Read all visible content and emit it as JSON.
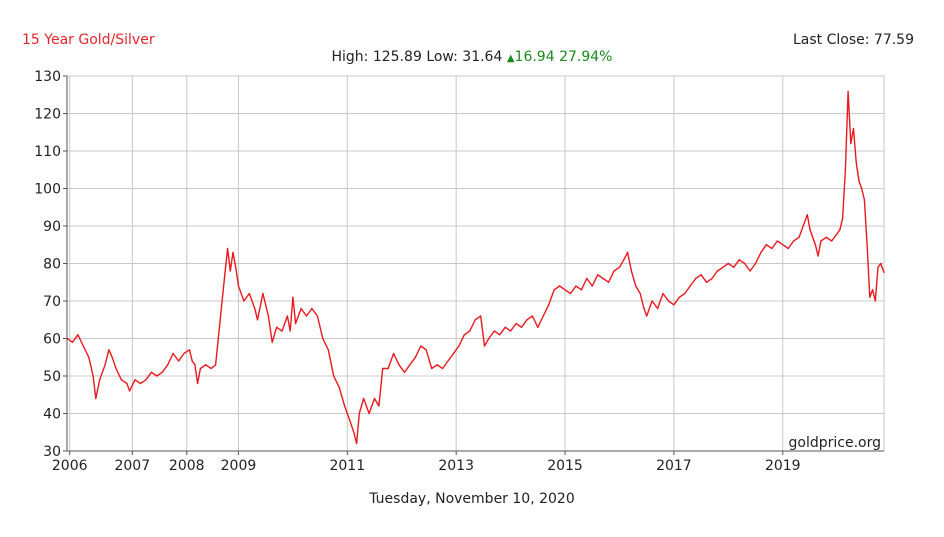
{
  "header": {
    "title": "15 Year Gold/Silver",
    "last_close_label": "Last Close:",
    "last_close_value": "77.59",
    "high_label": "High:",
    "high_value": "125.89",
    "low_label": "Low:",
    "low_value": "31.64",
    "change_arrow": "▲",
    "change_value": "16.94",
    "change_pct": "27.94%"
  },
  "footer": {
    "date": "Tuesday, November 10, 2020"
  },
  "watermark": "goldprice.org",
  "colors": {
    "line": "#e8191f",
    "title": "#e3262b",
    "change": "#1a8a1a",
    "grid": "#c8c8c8"
  },
  "chart_data": {
    "type": "line",
    "title": "15 Year Gold/Silver",
    "xlabel": "",
    "ylabel": "",
    "ylim": [
      30,
      130
    ],
    "xlim": [
      2005.85,
      2020.86
    ],
    "yticks": [
      30,
      40,
      50,
      60,
      70,
      80,
      90,
      100,
      110,
      120,
      130
    ],
    "xticks": [
      {
        "label": "2006",
        "x": 2005.9
      },
      {
        "label": "2007",
        "x": 2007.05
      },
      {
        "label": "2008",
        "x": 2008.05
      },
      {
        "label": "2009",
        "x": 2009.0
      },
      {
        "label": "2011",
        "x": 2011.0
      },
      {
        "label": "2013",
        "x": 2013.0
      },
      {
        "label": "2015",
        "x": 2015.0
      },
      {
        "label": "2017",
        "x": 2017.0
      },
      {
        "label": "2019",
        "x": 2019.0
      }
    ],
    "grid": true,
    "series": [
      {
        "points": [
          [
            2005.86,
            60
          ],
          [
            2005.95,
            59
          ],
          [
            2006.05,
            61
          ],
          [
            2006.15,
            58
          ],
          [
            2006.25,
            55
          ],
          [
            2006.33,
            50
          ],
          [
            2006.38,
            44
          ],
          [
            2006.45,
            49
          ],
          [
            2006.55,
            53
          ],
          [
            2006.62,
            57
          ],
          [
            2006.68,
            55
          ],
          [
            2006.75,
            52
          ],
          [
            2006.85,
            49
          ],
          [
            2006.95,
            48
          ],
          [
            2007.0,
            46
          ],
          [
            2007.1,
            49
          ],
          [
            2007.2,
            48
          ],
          [
            2007.3,
            49
          ],
          [
            2007.4,
            51
          ],
          [
            2007.5,
            50
          ],
          [
            2007.6,
            51
          ],
          [
            2007.7,
            53
          ],
          [
            2007.8,
            56
          ],
          [
            2007.9,
            54
          ],
          [
            2008.0,
            56
          ],
          [
            2008.1,
            57
          ],
          [
            2008.15,
            54
          ],
          [
            2008.2,
            53
          ],
          [
            2008.25,
            48
          ],
          [
            2008.3,
            52
          ],
          [
            2008.4,
            53
          ],
          [
            2008.5,
            52
          ],
          [
            2008.58,
            53
          ],
          [
            2008.63,
            60
          ],
          [
            2008.7,
            70
          ],
          [
            2008.75,
            77
          ],
          [
            2008.8,
            84
          ],
          [
            2008.85,
            78
          ],
          [
            2008.9,
            83
          ],
          [
            2008.95,
            79
          ],
          [
            2009.0,
            74
          ],
          [
            2009.1,
            70
          ],
          [
            2009.2,
            72
          ],
          [
            2009.3,
            68
          ],
          [
            2009.35,
            65
          ],
          [
            2009.45,
            72
          ],
          [
            2009.55,
            66
          ],
          [
            2009.62,
            59
          ],
          [
            2009.7,
            63
          ],
          [
            2009.8,
            62
          ],
          [
            2009.9,
            66
          ],
          [
            2009.95,
            62
          ],
          [
            2010.0,
            71
          ],
          [
            2010.05,
            64
          ],
          [
            2010.15,
            68
          ],
          [
            2010.25,
            66
          ],
          [
            2010.35,
            68
          ],
          [
            2010.45,
            66
          ],
          [
            2010.55,
            60
          ],
          [
            2010.65,
            57
          ],
          [
            2010.75,
            50
          ],
          [
            2010.85,
            47
          ],
          [
            2010.95,
            42
          ],
          [
            2011.05,
            38
          ],
          [
            2011.12,
            35
          ],
          [
            2011.17,
            32
          ],
          [
            2011.22,
            40
          ],
          [
            2011.3,
            44
          ],
          [
            2011.4,
            40
          ],
          [
            2011.5,
            44
          ],
          [
            2011.58,
            42
          ],
          [
            2011.65,
            52
          ],
          [
            2011.75,
            52
          ],
          [
            2011.85,
            56
          ],
          [
            2011.95,
            53
          ],
          [
            2012.05,
            51
          ],
          [
            2012.15,
            53
          ],
          [
            2012.25,
            55
          ],
          [
            2012.35,
            58
          ],
          [
            2012.45,
            57
          ],
          [
            2012.55,
            52
          ],
          [
            2012.65,
            53
          ],
          [
            2012.75,
            52
          ],
          [
            2012.85,
            54
          ],
          [
            2012.95,
            56
          ],
          [
            2013.05,
            58
          ],
          [
            2013.15,
            61
          ],
          [
            2013.25,
            62
          ],
          [
            2013.35,
            65
          ],
          [
            2013.45,
            66
          ],
          [
            2013.52,
            58
          ],
          [
            2013.6,
            60
          ],
          [
            2013.7,
            62
          ],
          [
            2013.8,
            61
          ],
          [
            2013.9,
            63
          ],
          [
            2014.0,
            62
          ],
          [
            2014.1,
            64
          ],
          [
            2014.2,
            63
          ],
          [
            2014.3,
            65
          ],
          [
            2014.4,
            66
          ],
          [
            2014.5,
            63
          ],
          [
            2014.6,
            66
          ],
          [
            2014.7,
            69
          ],
          [
            2014.8,
            73
          ],
          [
            2014.9,
            74
          ],
          [
            2015.0,
            73
          ],
          [
            2015.1,
            72
          ],
          [
            2015.2,
            74
          ],
          [
            2015.3,
            73
          ],
          [
            2015.4,
            76
          ],
          [
            2015.5,
            74
          ],
          [
            2015.6,
            77
          ],
          [
            2015.7,
            76
          ],
          [
            2015.8,
            75
          ],
          [
            2015.9,
            78
          ],
          [
            2016.0,
            79
          ],
          [
            2016.08,
            81
          ],
          [
            2016.15,
            83
          ],
          [
            2016.22,
            78
          ],
          [
            2016.3,
            74
          ],
          [
            2016.38,
            72
          ],
          [
            2016.45,
            68
          ],
          [
            2016.5,
            66
          ],
          [
            2016.6,
            70
          ],
          [
            2016.7,
            68
          ],
          [
            2016.8,
            72
          ],
          [
            2016.9,
            70
          ],
          [
            2017.0,
            69
          ],
          [
            2017.1,
            71
          ],
          [
            2017.2,
            72
          ],
          [
            2017.3,
            74
          ],
          [
            2017.4,
            76
          ],
          [
            2017.5,
            77
          ],
          [
            2017.6,
            75
          ],
          [
            2017.7,
            76
          ],
          [
            2017.8,
            78
          ],
          [
            2017.9,
            79
          ],
          [
            2018.0,
            80
          ],
          [
            2018.1,
            79
          ],
          [
            2018.2,
            81
          ],
          [
            2018.3,
            80
          ],
          [
            2018.4,
            78
          ],
          [
            2018.5,
            80
          ],
          [
            2018.6,
            83
          ],
          [
            2018.7,
            85
          ],
          [
            2018.8,
            84
          ],
          [
            2018.9,
            86
          ],
          [
            2019.0,
            85
          ],
          [
            2019.1,
            84
          ],
          [
            2019.2,
            86
          ],
          [
            2019.3,
            87
          ],
          [
            2019.4,
            91
          ],
          [
            2019.45,
            93
          ],
          [
            2019.5,
            89
          ],
          [
            2019.6,
            85
          ],
          [
            2019.65,
            82
          ],
          [
            2019.7,
            86
          ],
          [
            2019.8,
            87
          ],
          [
            2019.9,
            86
          ],
          [
            2020.0,
            88
          ],
          [
            2020.05,
            89
          ],
          [
            2020.1,
            92
          ],
          [
            2020.15,
            105
          ],
          [
            2020.2,
            125.9
          ],
          [
            2020.25,
            112
          ],
          [
            2020.3,
            116
          ],
          [
            2020.35,
            107
          ],
          [
            2020.4,
            102
          ],
          [
            2020.45,
            100
          ],
          [
            2020.5,
            97
          ],
          [
            2020.55,
            85
          ],
          [
            2020.6,
            71
          ],
          [
            2020.65,
            73
          ],
          [
            2020.7,
            70
          ],
          [
            2020.75,
            79
          ],
          [
            2020.8,
            80
          ],
          [
            2020.86,
            77.6
          ]
        ]
      }
    ]
  }
}
